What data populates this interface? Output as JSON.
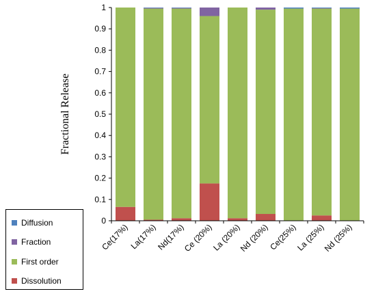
{
  "chart_data": {
    "type": "bar",
    "stacked": true,
    "title": "",
    "xlabel": "",
    "ylabel": "Fractional Release",
    "ylim": [
      0,
      1
    ],
    "yticks": [
      "0",
      "0.1",
      "0.2",
      "0.3",
      "0.4",
      "0.5",
      "0.6",
      "0.7",
      "0.8",
      "0.9",
      "1"
    ],
    "categories": [
      "Ce(17%)",
      "La(17%)",
      "Nd(17%)",
      "Ce (20%)",
      "La (20%)",
      "Nd (20%)",
      "Ce(25%)",
      "La (25%)",
      "Nd (25%)"
    ],
    "series": [
      {
        "name": "Dissolution",
        "color": "#c0504d",
        "values": [
          0.065,
          0.005,
          0.012,
          0.175,
          0.012,
          0.032,
          0.0,
          0.025,
          0.0
        ]
      },
      {
        "name": "First order",
        "color": "#9bbb59",
        "values": [
          0.935,
          0.99,
          0.983,
          0.785,
          0.988,
          0.958,
          0.995,
          0.97,
          0.995
        ]
      },
      {
        "name": "Fraction",
        "color": "#8064a2",
        "values": [
          0.0,
          0.003,
          0.003,
          0.04,
          0.0,
          0.01,
          0.0,
          0.002,
          0.0
        ]
      },
      {
        "name": "Diffusion",
        "color": "#4f81bd",
        "values": [
          0.0,
          0.002,
          0.002,
          0.0,
          0.0,
          0.0,
          0.005,
          0.003,
          0.005
        ]
      }
    ],
    "legend": {
      "placement": "bottom-left",
      "order": [
        "Diffusion",
        "Fraction",
        "First order",
        "Dissolution"
      ]
    },
    "grid": false
  }
}
